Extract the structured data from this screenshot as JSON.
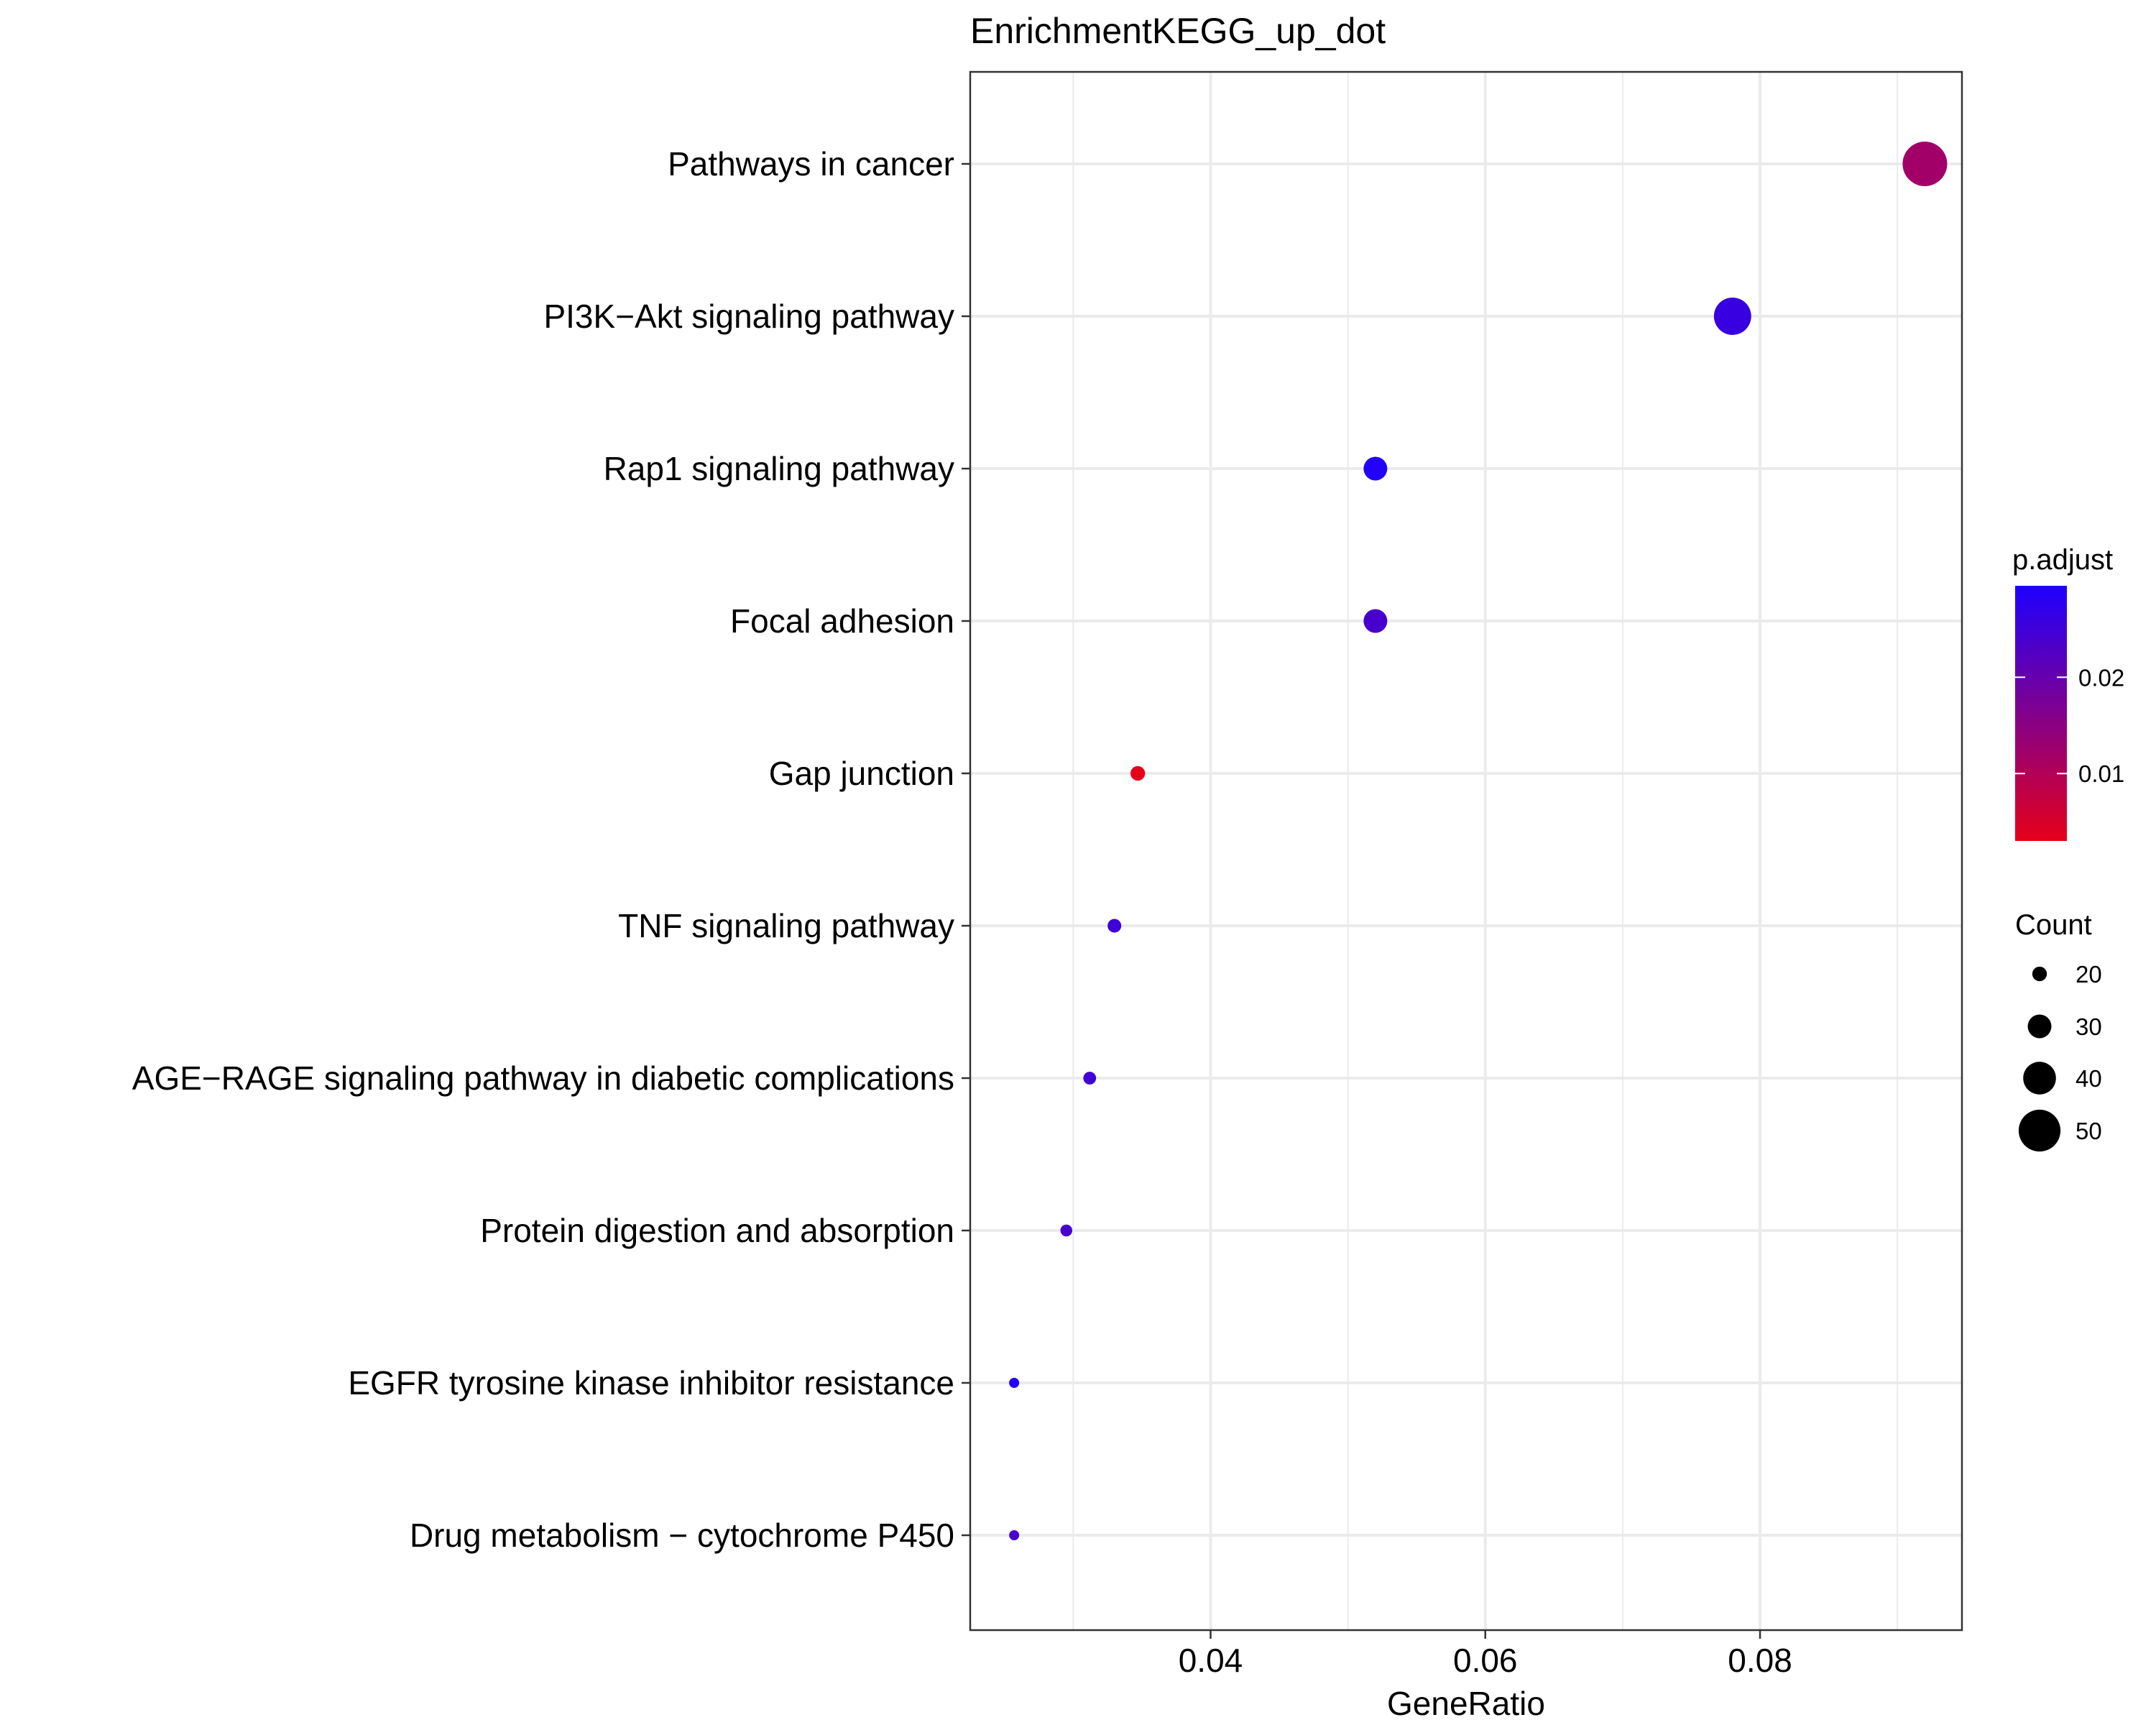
{
  "chart_data": {
    "type": "scatter",
    "title": "EnrichmentKEGG_up_dot",
    "xlabel": "GeneRatio",
    "ylabel": "",
    "xlim": [
      0.0225,
      0.0947
    ],
    "xticks": [
      0.04,
      0.06,
      0.08
    ],
    "xtick_labels": [
      "0.04",
      "0.06",
      "0.08"
    ],
    "grid": true,
    "categories": [
      "Pathways in cancer",
      "PI3K−Akt signaling pathway",
      "Rap1 signaling pathway",
      "Focal adhesion",
      "Gap junction",
      "TNF signaling pathway",
      "AGE−RAGE signaling pathway in diabetic complications",
      "Protein digestion and absorption",
      "EGFR tyrosine kinase inhibitor resistance",
      "Drug metabolism − cytochrome P450"
    ],
    "points": [
      {
        "term": "Pathways in cancer",
        "gene_ratio": 0.092,
        "count": 53,
        "p_adjust": 0.012
      },
      {
        "term": "PI3K−Akt signaling pathway",
        "gene_ratio": 0.078,
        "count": 45,
        "p_adjust": 0.026
      },
      {
        "term": "Rap1 signaling pathway",
        "gene_ratio": 0.052,
        "count": 30,
        "p_adjust": 0.029
      },
      {
        "term": "Focal adhesion",
        "gene_ratio": 0.052,
        "count": 30,
        "p_adjust": 0.024
      },
      {
        "term": "Gap junction",
        "gene_ratio": 0.0347,
        "count": 20,
        "p_adjust": 0.003
      },
      {
        "term": "TNF signaling pathway",
        "gene_ratio": 0.033,
        "count": 19,
        "p_adjust": 0.025
      },
      {
        "term": "AGE−RAGE signaling pathway in diabetic complications",
        "gene_ratio": 0.0312,
        "count": 18,
        "p_adjust": 0.025
      },
      {
        "term": "Protein digestion and absorption",
        "gene_ratio": 0.0295,
        "count": 17,
        "p_adjust": 0.024
      },
      {
        "term": "EGFR tyrosine kinase inhibitor resistance",
        "gene_ratio": 0.0257,
        "count": 15,
        "p_adjust": 0.029
      },
      {
        "term": "Drug metabolism − cytochrome P450",
        "gene_ratio": 0.0257,
        "count": 15,
        "p_adjust": 0.024
      }
    ],
    "color_legend": {
      "title": "p.adjust",
      "range": [
        0.003,
        0.0295
      ],
      "low_color": "#e6001a",
      "high_color": "#1e00ff",
      "ticks": [
        0.01,
        0.02
      ],
      "tick_labels": [
        "0.01",
        "0.02"
      ]
    },
    "size_legend": {
      "title": "Count",
      "values": [
        20,
        30,
        40,
        50
      ],
      "labels": [
        "20",
        "30",
        "40",
        "50"
      ]
    },
    "colors": {
      "grid": "#ebebeb",
      "panel_border": "#333333",
      "background": "#ffffff"
    }
  }
}
